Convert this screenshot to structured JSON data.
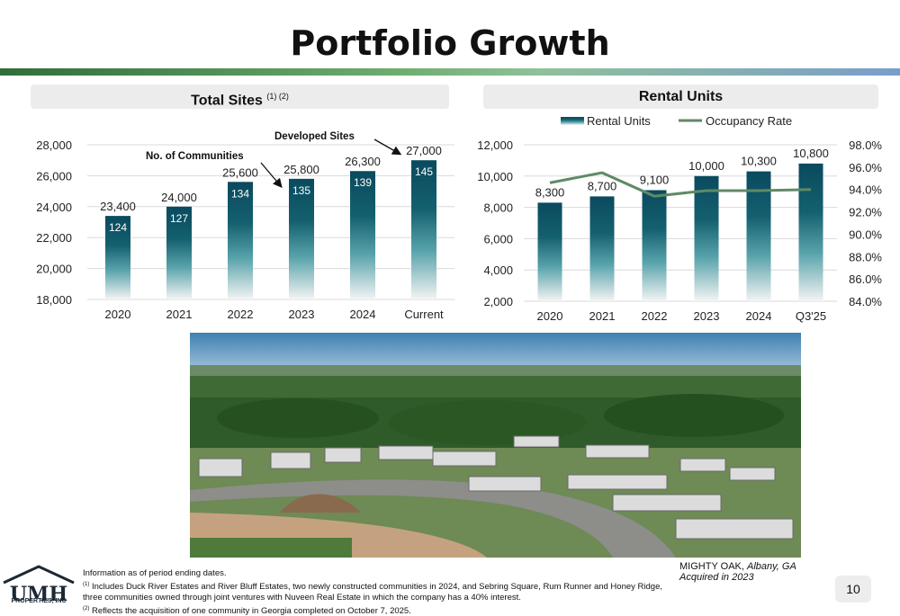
{
  "title": "Portfolio Growth",
  "colors": {
    "bar_top": "#0a4a5e",
    "bar_mid": "#4f9ca6",
    "bar_bottom": "#f3f3f3",
    "line": "#5f8a67",
    "gradbar_start": "#2f6e3a",
    "gradbar_end": "#7a9ecb"
  },
  "left_panel": {
    "title": "Total Sites",
    "title_sup": "(1) (2)",
    "annotation_developed": "Developed Sites",
    "annotation_communities": "No. of Communities"
  },
  "right_panel": {
    "title": "Rental Units"
  },
  "chart_data": [
    {
      "type": "bar",
      "title": "Total Sites",
      "categories": [
        "2020",
        "2021",
        "2022",
        "2023",
        "2024",
        "Current"
      ],
      "values": [
        23400,
        24000,
        25600,
        25800,
        26300,
        27000
      ],
      "value_labels": [
        "23,400",
        "24,000",
        "25,600",
        "25,800",
        "26,300",
        "27,000"
      ],
      "secondary_labels": [
        "124",
        "127",
        "134",
        "135",
        "139",
        "145"
      ],
      "secondary_name": "No. of Communities",
      "ylim": [
        18000,
        28000
      ],
      "yticks": [
        18000,
        20000,
        22000,
        24000,
        26000,
        28000
      ],
      "ytick_labels": [
        "18,000",
        "20,000",
        "22,000",
        "24,000",
        "26,000",
        "28,000"
      ],
      "grid": true
    },
    {
      "type": "bar",
      "title": "Rental Units",
      "categories": [
        "2020",
        "2021",
        "2022",
        "2023",
        "2024",
        "Q3'25"
      ],
      "series": [
        {
          "name": "Rental Units",
          "kind": "bar",
          "values": [
            8300,
            8700,
            9100,
            10000,
            10300,
            10800
          ],
          "labels": [
            "8,300",
            "8,700",
            "9,100",
            "10,000",
            "10,300",
            "10,800"
          ]
        },
        {
          "name": "Occupancy Rate",
          "kind": "line",
          "axis": "right",
          "values": [
            94.6,
            95.5,
            93.4,
            93.9,
            93.9,
            94.0
          ]
        }
      ],
      "ylim": [
        2000,
        12000
      ],
      "yticks": [
        2000,
        4000,
        6000,
        8000,
        10000,
        12000
      ],
      "ytick_labels": [
        "2,000",
        "4,000",
        "6,000",
        "8,000",
        "10,000",
        "12,000"
      ],
      "y2lim": [
        84,
        98
      ],
      "y2ticks": [
        84,
        86,
        88,
        90,
        92,
        94,
        96,
        98
      ],
      "y2tick_labels": [
        "84.0%",
        "86.0%",
        "88.0%",
        "90.0%",
        "92.0%",
        "94.0%",
        "96.0%",
        "98.0%"
      ],
      "legend": "top-center",
      "grid": true
    }
  ],
  "photo": {
    "caption_name": "MIGHTY OAK,",
    "caption_place": "Albany, GA",
    "caption_acquired": "Acquired in 2023"
  },
  "footnotes": {
    "intro": "Information as of period ending dates.",
    "note1_marker": "(1)",
    "note1": "Includes Duck River Estates and River Bluff Estates, two newly constructed communities in 2024, and Sebring Square, Rum Runner and Honey Ridge, three communities owned through joint ventures with Nuveen Real Estate in which the company has a 40% interest.",
    "note2_marker": "(2)",
    "note2": "Reflects the acquisition of one community in Georgia completed on October 7, 2025."
  },
  "logo": {
    "letters": "UMH",
    "subtitle": "PROPERTIES, INC"
  },
  "page_number": "10"
}
